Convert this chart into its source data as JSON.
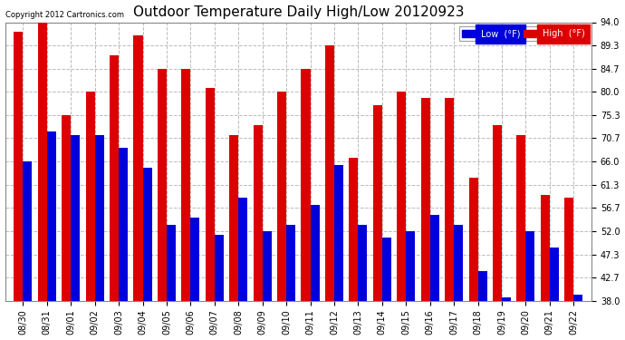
{
  "title": "Outdoor Temperature Daily High/Low 20120923",
  "copyright": "Copyright 2012 Cartronics.com",
  "legend_low_label": "Low  (°F)",
  "legend_high_label": "High  (°F)",
  "background_color": "#ffffff",
  "plot_bg_color": "#ffffff",
  "grid_color": "#bbbbbb",
  "low_color": "#0000dd",
  "high_color": "#dd0000",
  "dates": [
    "08/30",
    "08/31",
    "09/01",
    "09/02",
    "09/03",
    "09/04",
    "09/05",
    "09/06",
    "09/07",
    "09/08",
    "09/09",
    "09/10",
    "09/11",
    "09/12",
    "09/13",
    "09/14",
    "09/15",
    "09/16",
    "09/17",
    "09/18",
    "09/19",
    "09/20",
    "09/21",
    "09/22"
  ],
  "highs": [
    92.0,
    94.0,
    75.3,
    80.0,
    87.3,
    91.3,
    84.7,
    84.7,
    80.7,
    71.3,
    73.3,
    80.0,
    84.7,
    89.3,
    66.7,
    77.3,
    80.0,
    78.7,
    78.7,
    62.7,
    73.3,
    71.3,
    59.3,
    58.7
  ],
  "lows": [
    66.0,
    72.0,
    71.3,
    71.3,
    68.7,
    64.7,
    53.3,
    54.7,
    51.3,
    58.7,
    52.0,
    53.3,
    57.3,
    65.3,
    53.3,
    50.7,
    52.0,
    55.3,
    53.3,
    44.0,
    38.7,
    52.0,
    48.7,
    39.3
  ],
  "ylim": [
    38.0,
    94.0
  ],
  "yticks": [
    38.0,
    42.7,
    47.3,
    52.0,
    56.7,
    61.3,
    66.0,
    70.7,
    75.3,
    80.0,
    84.7,
    89.3,
    94.0
  ],
  "title_fontsize": 11,
  "tick_fontsize": 7,
  "copyright_fontsize": 6,
  "bar_width": 0.38
}
